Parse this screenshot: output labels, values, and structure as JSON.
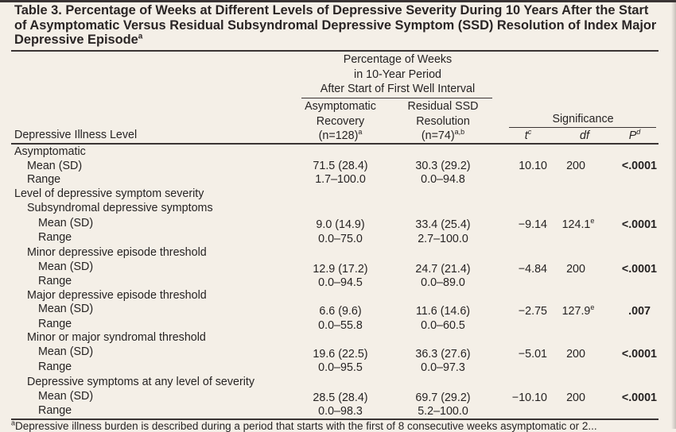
{
  "title": {
    "text": "Table 3. Percentage of Weeks at Different Levels of Depressive Severity During 10 Years After the Start of Asymptomatic Versus Residual Subsyndromal Depressive Symptom (SSD) Resolution of Index Major Depressive Episode",
    "sup": "a"
  },
  "header": {
    "group": [
      "Percentage of Weeks",
      "in 10-Year Period",
      "After Start of First Well Interval"
    ],
    "col1": [
      "Asymptomatic",
      "Recovery",
      "(n=128)"
    ],
    "col1_sup": "a",
    "col2": [
      "Residual SSD",
      "Resolution",
      "(n=74)"
    ],
    "col2_sup": "a,b",
    "significance": "Significance",
    "t": "t",
    "t_sup": "c",
    "df": "df",
    "p": "P",
    "p_sup": "d",
    "row_label": "Depressive Illness Level"
  },
  "rows": {
    "asym": "Asymptomatic",
    "asym_mean": "Mean (SD)",
    "asym_mean_c1": "71.5 (28.4)",
    "asym_mean_c2": "30.3 (29.2)",
    "asym_t": "10.10",
    "asym_df": "200",
    "asym_p": "<.0001",
    "asym_range": "Range",
    "asym_range_c1": "1.7–100.0",
    "asym_range_c2": "0.0–94.8",
    "level": "Level of depressive symptom severity",
    "ssd": "Subsyndromal depressive symptoms",
    "ssd_mean": "Mean (SD)",
    "ssd_mean_c1": "9.0 (14.9)",
    "ssd_mean_c2": "33.4 (25.4)",
    "ssd_t": "−9.14",
    "ssd_df": "124.1",
    "ssd_df_sup": "e",
    "ssd_p": "<.0001",
    "ssd_range": "Range",
    "ssd_range_c1": "0.0–75.0",
    "ssd_range_c2": "2.7–100.0",
    "minor": "Minor depressive episode threshold",
    "minor_mean": "Mean (SD)",
    "minor_mean_c1": "12.9 (17.2)",
    "minor_mean_c2": "24.7 (21.4)",
    "minor_t": "−4.84",
    "minor_df": "200",
    "minor_p": "<.0001",
    "minor_range": "Range",
    "minor_range_c1": "0.0–94.5",
    "minor_range_c2": "0.0–89.0",
    "major": "Major depressive episode threshold",
    "major_mean": "Mean (SD)",
    "major_mean_c1": "6.6 (9.6)",
    "major_mean_c2": "11.6 (14.6)",
    "major_t": "−2.75",
    "major_df": "127.9",
    "major_df_sup": "e",
    "major_p": ".007",
    "major_range": "Range",
    "major_range_c1": "0.0–55.8",
    "major_range_c2": "0.0–60.5",
    "synd": "Minor or major syndromal threshold",
    "synd_mean": "Mean (SD)",
    "synd_mean_c1": "19.6 (22.5)",
    "synd_mean_c2": "36.3 (27.6)",
    "synd_t": "−5.01",
    "synd_df": "200",
    "synd_p": "<.0001",
    "synd_range": "Range",
    "synd_range_c1": "0.0–95.5",
    "synd_range_c2": "0.0–97.3",
    "any": "Depressive symptoms at any level of severity",
    "any_mean": "Mean (SD)",
    "any_mean_c1": "28.5 (28.4)",
    "any_mean_c2": "69.7 (29.2)",
    "any_t": "−10.10",
    "any_df": "200",
    "any_p": "<.0001",
    "any_range": "Range",
    "any_range_c1": "0.0–98.3",
    "any_range_c2": "5.2–100.0"
  },
  "footnote": {
    "sup": "a",
    "text": "Depressive illness burden is described during a period that starts with the first of 8 consecutive weeks asymptomatic or 2..."
  }
}
